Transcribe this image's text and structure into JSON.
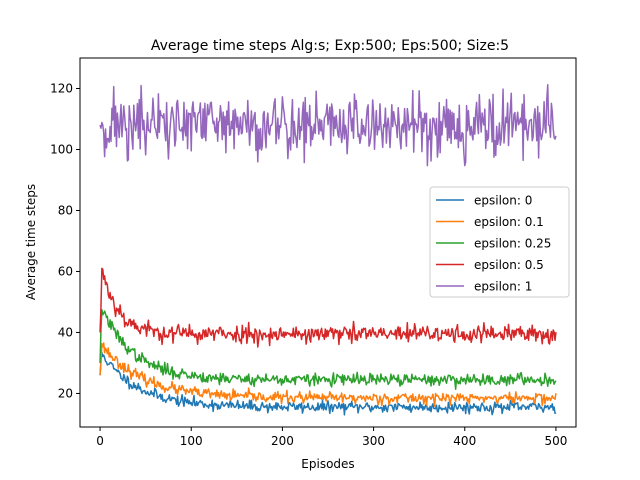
{
  "chart_data": {
    "type": "line",
    "title": "Average time steps Alg:s; Exp:500; Eps:500; Size:5",
    "xlabel": "Episodes",
    "ylabel": "Average time steps",
    "xlim": [
      -22,
      522
    ],
    "ylim": [
      9,
      130
    ],
    "xticks": [
      0,
      100,
      200,
      300,
      400,
      500
    ],
    "yticks": [
      20,
      40,
      60,
      80,
      100,
      120
    ],
    "grid": false,
    "legend_position": "center-right",
    "n_points": 501,
    "series": [
      {
        "name": "epsilon: 0",
        "color": "#1f77b4",
        "profile": {
          "start": 26,
          "peak": 33,
          "asymptote": 15.5,
          "decay": 40,
          "noise": 0.9,
          "seed": 11
        }
      },
      {
        "name": "epsilon: 0.1",
        "color": "#ff7f0e",
        "profile": {
          "start": 26,
          "peak": 36,
          "asymptote": 18.5,
          "decay": 45,
          "noise": 0.9,
          "seed": 23
        }
      },
      {
        "name": "epsilon: 0.25",
        "color": "#2ca02c",
        "profile": {
          "start": 30,
          "peak": 48,
          "asymptote": 24.5,
          "decay": 35,
          "noise": 1.0,
          "seed": 37
        }
      },
      {
        "name": "epsilon: 0.5",
        "color": "#d62728",
        "profile": {
          "start": 40,
          "peak": 61,
          "asymptote": 39.5,
          "decay": 18,
          "noise": 1.5,
          "seed": 53
        }
      },
      {
        "name": "epsilon: 1",
        "color": "#9467bd",
        "profile": {
          "start": 108,
          "peak": 110,
          "asymptote": 108,
          "decay": 1,
          "noise": 5.5,
          "seed": 71
        }
      }
    ]
  }
}
